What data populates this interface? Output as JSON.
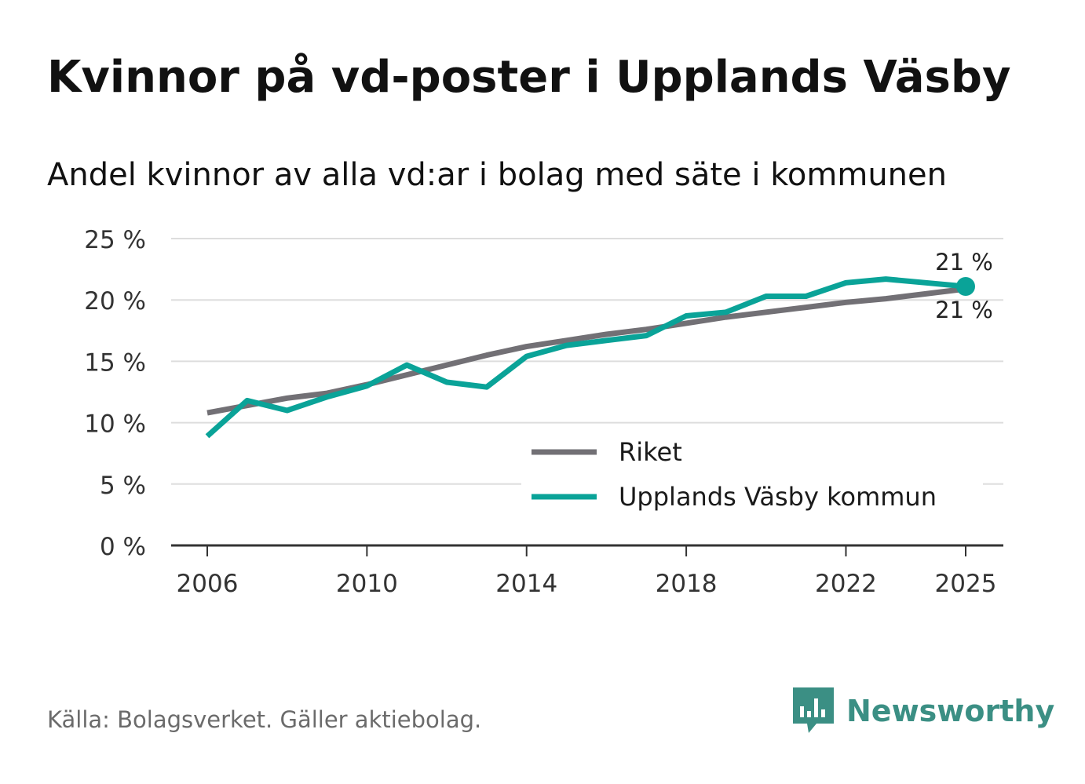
{
  "title": "Kvinnor på vd-poster i Upplands Väsby",
  "subtitle": "Andel kvinnor av alla vd:ar i bolag med säte i kommunen",
  "source": "Källa: Bolagsverket. Gäller aktiebolag.",
  "brand": "Newsworthy",
  "colors": {
    "riket": "#727075",
    "kommun": "#0aa398",
    "grid": "#dddddd",
    "axis": "#333333",
    "brand": "#3b8f84"
  },
  "chart_data": {
    "type": "line",
    "title": "Kvinnor på vd-poster i Upplands Väsby",
    "subtitle": "Andel kvinnor av alla vd:ar i bolag med säte i kommunen",
    "xlabel": "",
    "ylabel": "",
    "x": [
      2006,
      2007,
      2008,
      2009,
      2010,
      2011,
      2012,
      2013,
      2014,
      2015,
      2016,
      2017,
      2018,
      2019,
      2020,
      2021,
      2022,
      2023,
      2024,
      2025
    ],
    "xticks": [
      2006,
      2010,
      2014,
      2018,
      2022,
      2025
    ],
    "xtick_labels": [
      "2006",
      "2010",
      "2014",
      "2018",
      "2022",
      "2025"
    ],
    "ylim": [
      0,
      25
    ],
    "yticks": [
      0,
      5,
      10,
      15,
      20,
      25
    ],
    "ytick_labels": [
      "0 %",
      "5 %",
      "10 %",
      "15 %",
      "20 %",
      "25 %"
    ],
    "grid": true,
    "legend_position": "bottom-right",
    "series": [
      {
        "name": "Riket",
        "values": [
          10.8,
          11.4,
          12.0,
          12.4,
          13.1,
          13.9,
          14.7,
          15.5,
          16.2,
          16.7,
          17.2,
          17.6,
          18.1,
          18.6,
          19.0,
          19.4,
          19.8,
          20.1,
          20.5,
          20.9
        ],
        "end_label": "21 %"
      },
      {
        "name": "Upplands Väsby kommun",
        "values": [
          8.9,
          11.8,
          11.0,
          12.1,
          13.0,
          14.7,
          13.3,
          12.9,
          15.4,
          16.3,
          16.7,
          17.1,
          18.7,
          19.0,
          20.3,
          20.3,
          21.4,
          21.7,
          21.4,
          21.1
        ],
        "end_label": "21 %"
      }
    ]
  }
}
